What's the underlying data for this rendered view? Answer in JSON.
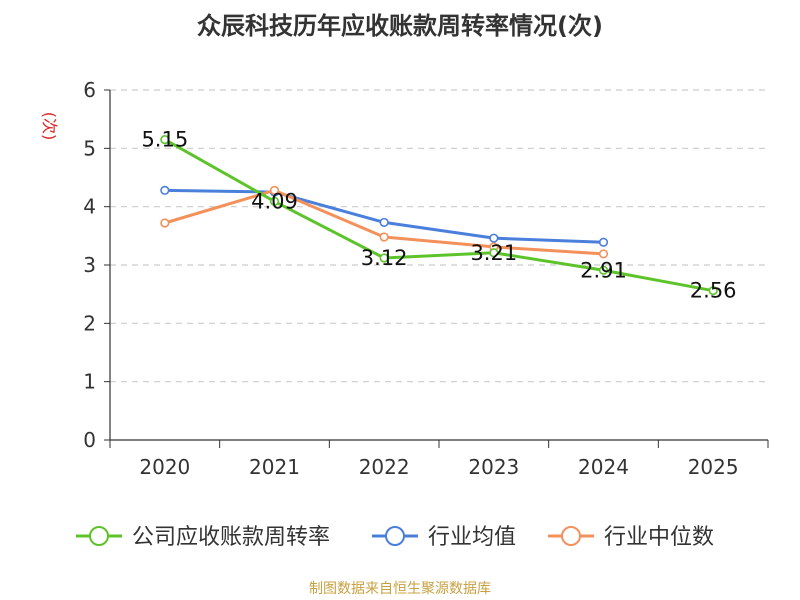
{
  "chart_data": {
    "type": "line",
    "title": "众辰科技历年应收账款周转率情况(次)",
    "ylabel": "(次)",
    "xlabel": "",
    "ylim": [
      0,
      6
    ],
    "yticks": [
      0,
      1,
      2,
      3,
      4,
      5,
      6
    ],
    "categories": [
      "2020",
      "2021",
      "2022",
      "2023",
      "2024",
      "2025"
    ],
    "grid": true,
    "legend_position": "bottom",
    "series": [
      {
        "name": "公司应收账款周转率",
        "color": "#5cc42a",
        "values": [
          5.15,
          4.09,
          3.12,
          3.21,
          2.91,
          2.56
        ],
        "labels": [
          "5.15",
          "4.09",
          "3.12",
          "3.21",
          "2.91",
          "2.56"
        ],
        "show_labels": true
      },
      {
        "name": "行业均值",
        "color": "#4a7fdc",
        "values": [
          4.28,
          4.25,
          3.73,
          3.46,
          3.39,
          null
        ],
        "show_labels": false
      },
      {
        "name": "行业中位数",
        "color": "#f4915a",
        "values": [
          3.72,
          4.28,
          3.48,
          3.31,
          3.19,
          null
        ],
        "show_labels": false
      }
    ]
  },
  "source_note": "制图数据来自恒生聚源数据库"
}
